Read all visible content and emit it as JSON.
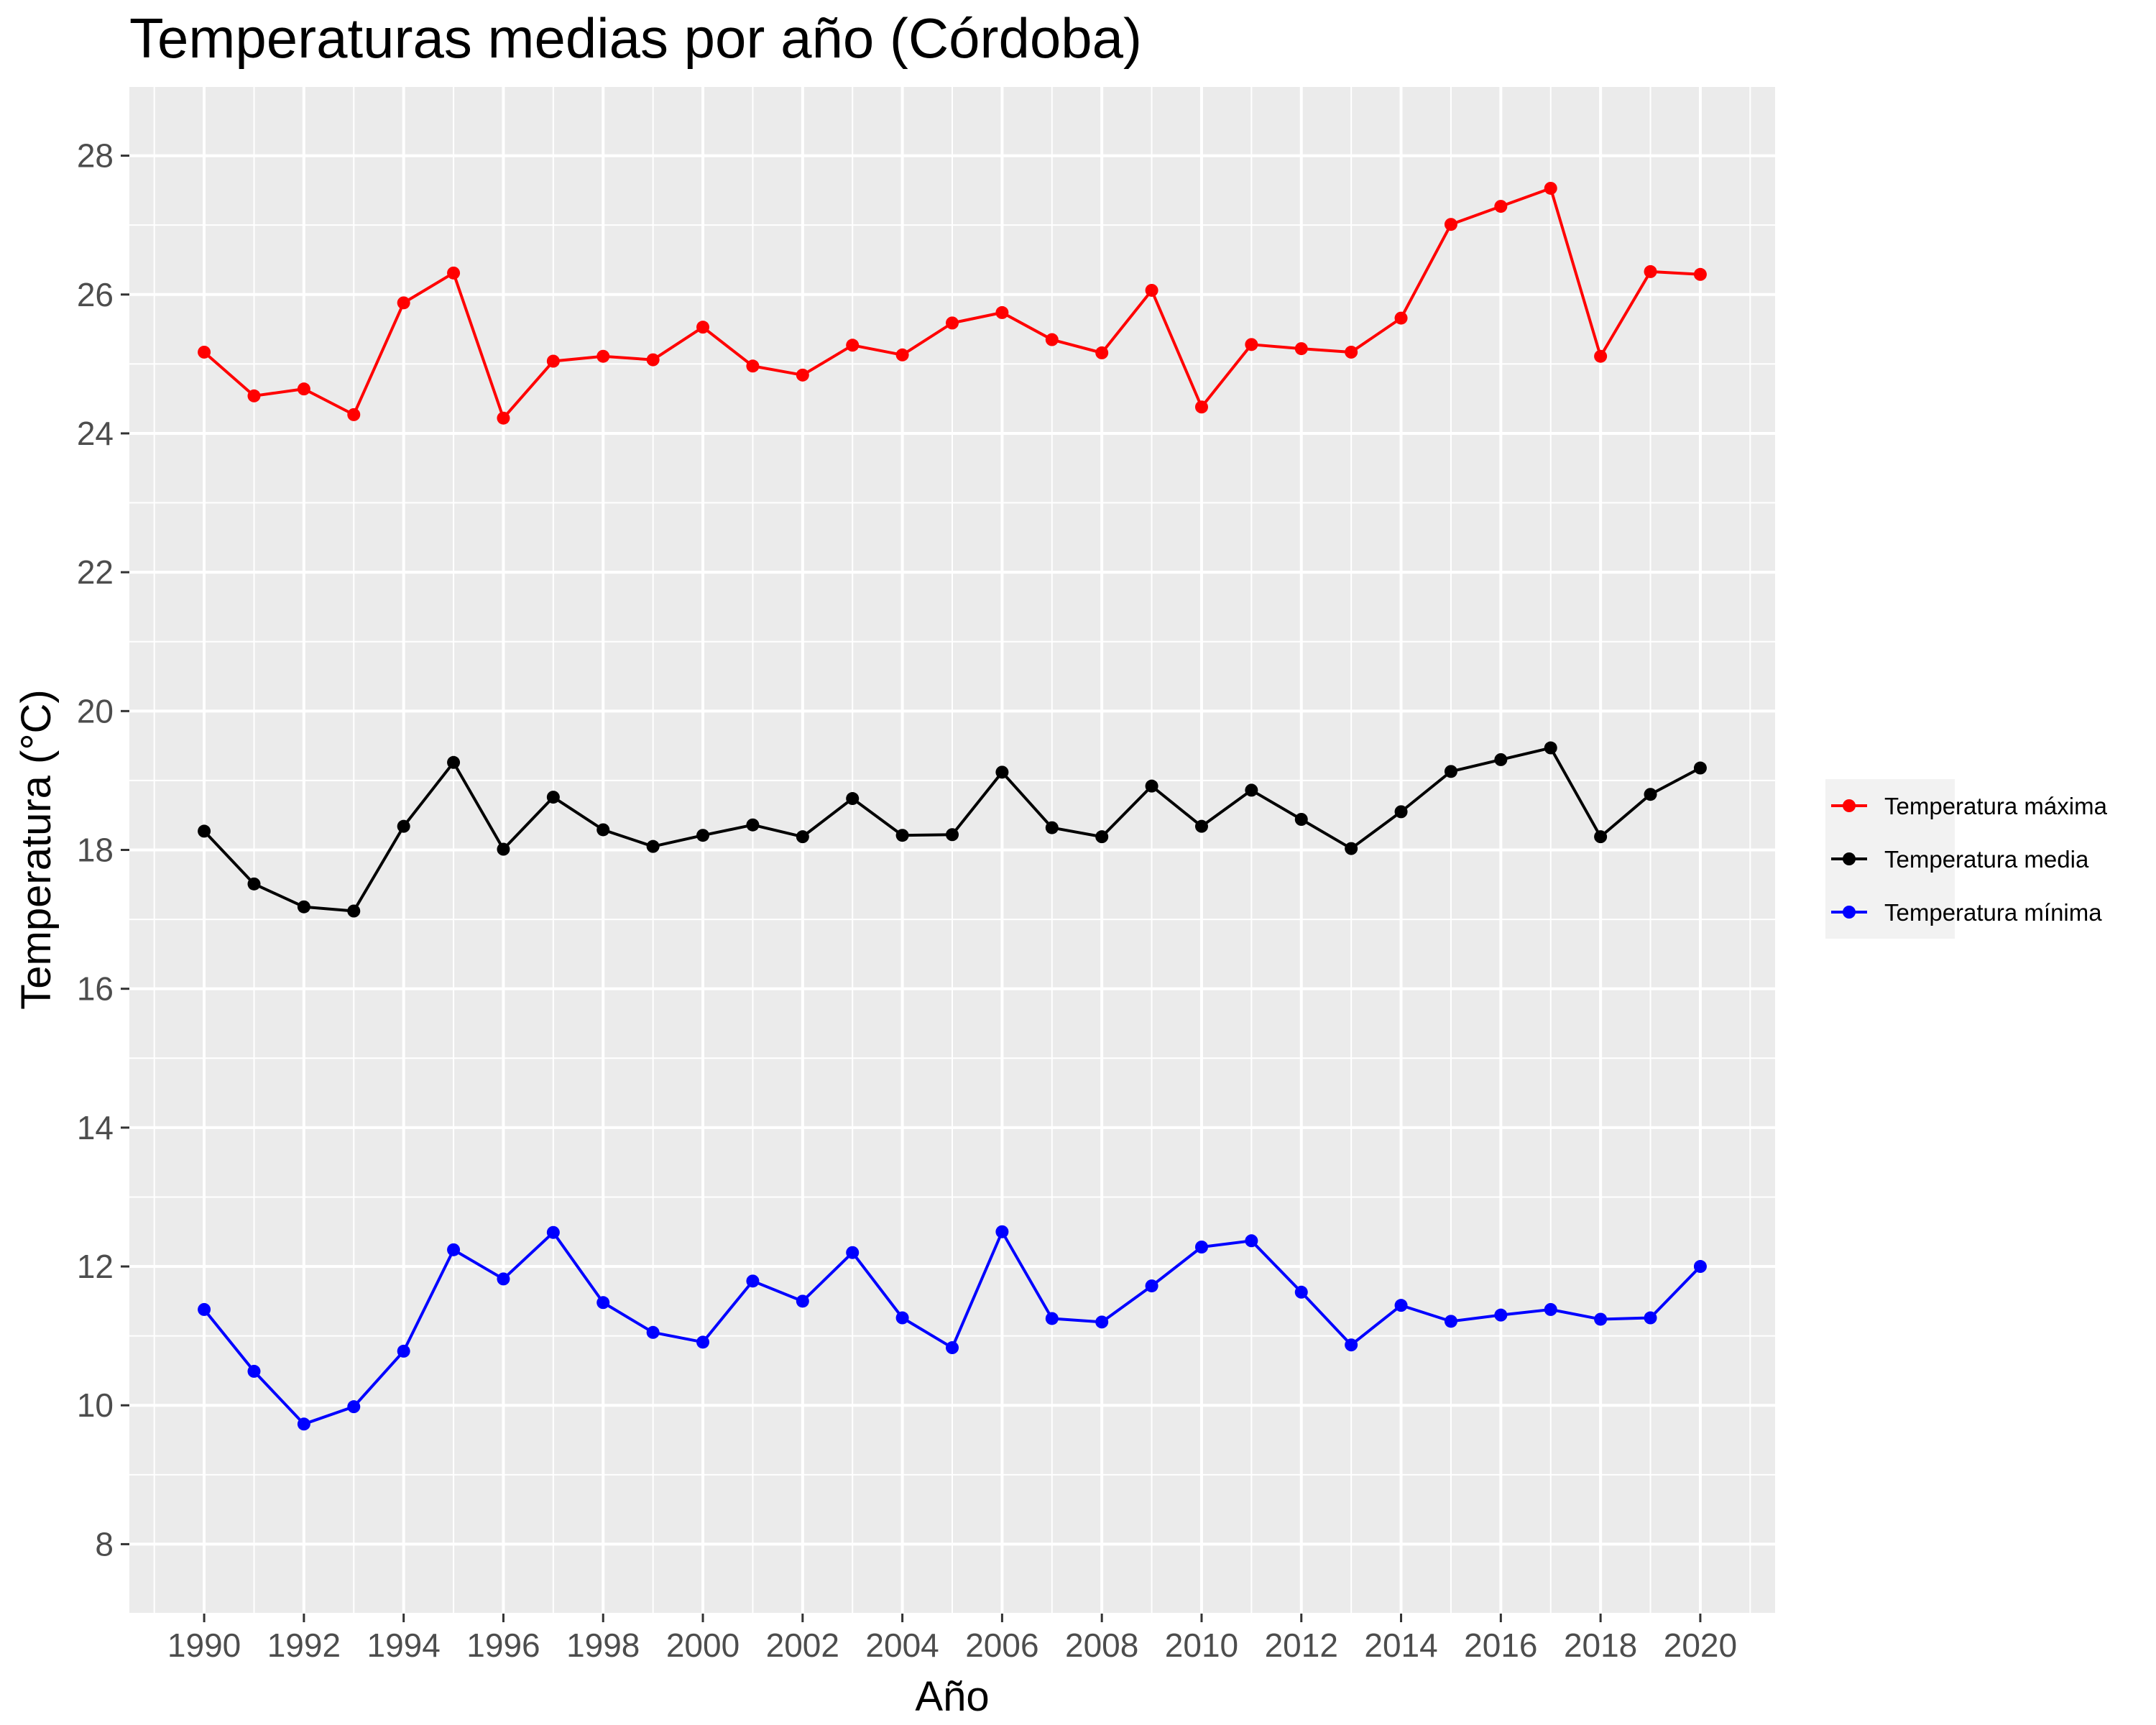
{
  "chart_data": {
    "type": "line",
    "title": "Temperaturas medias por año (Córdoba)",
    "xlabel": "Año",
    "ylabel": "Temperatura (°C)",
    "x": [
      1990,
      1991,
      1992,
      1993,
      1994,
      1995,
      1996,
      1997,
      1998,
      1999,
      2000,
      2001,
      2002,
      2003,
      2004,
      2005,
      2006,
      2007,
      2008,
      2009,
      2010,
      2011,
      2012,
      2013,
      2014,
      2015,
      2016,
      2017,
      2018,
      2019,
      2020
    ],
    "xlim": [
      1988.5,
      2021.5
    ],
    "ylim": [
      7,
      29
    ],
    "x_ticks": [
      "1990",
      "1992",
      "1994",
      "1996",
      "1998",
      "2000",
      "2002",
      "2004",
      "2006",
      "2008",
      "2010",
      "2012",
      "2014",
      "2016",
      "2018",
      "2020"
    ],
    "y_ticks": [
      "8",
      "10",
      "12",
      "14",
      "16",
      "18",
      "20",
      "22",
      "24",
      "26",
      "28"
    ],
    "grid": true,
    "legend_position": "right",
    "series": [
      {
        "name": "Temperatura máxima",
        "color": "#ff0000",
        "values": [
          25.17,
          24.54,
          24.64,
          24.27,
          25.88,
          26.31,
          24.22,
          25.04,
          25.11,
          25.06,
          25.53,
          24.97,
          24.84,
          25.27,
          25.13,
          25.59,
          25.74,
          25.35,
          25.16,
          26.06,
          24.38,
          25.28,
          25.22,
          25.17,
          25.66,
          27.01,
          27.27,
          27.53,
          25.11,
          26.33,
          26.29
        ]
      },
      {
        "name": "Temperatura media",
        "color": "#000000",
        "values": [
          18.27,
          17.51,
          17.18,
          17.12,
          18.34,
          19.26,
          18.01,
          18.76,
          18.29,
          18.05,
          18.21,
          18.36,
          18.19,
          18.74,
          18.21,
          18.22,
          19.12,
          18.32,
          18.19,
          18.92,
          18.34,
          18.86,
          18.44,
          18.02,
          18.55,
          19.13,
          19.3,
          19.47,
          18.19,
          18.8,
          19.18
        ]
      },
      {
        "name": "Temperatura mínima",
        "color": "#0000ff",
        "values": [
          11.38,
          10.49,
          9.73,
          9.98,
          10.78,
          12.24,
          11.82,
          12.49,
          11.48,
          11.05,
          10.91,
          11.79,
          11.5,
          12.2,
          11.26,
          10.83,
          12.5,
          11.25,
          11.2,
          11.72,
          12.28,
          12.37,
          11.63,
          10.87,
          11.44,
          11.21,
          11.3,
          11.38,
          11.24,
          11.26,
          12.0
        ]
      }
    ]
  }
}
